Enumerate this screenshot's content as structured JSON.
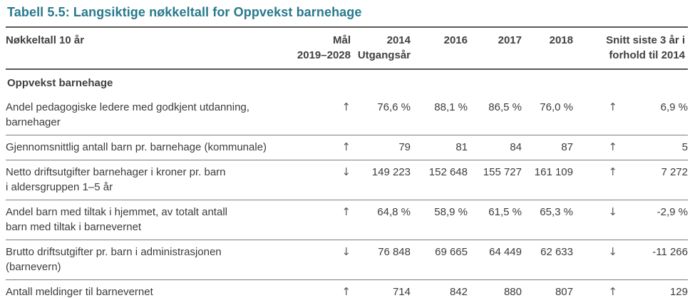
{
  "title": "Tabell 5.5: Langsiktige nøkkeltall for Oppvekst barnehage",
  "colors": {
    "title_accent": "#28798C",
    "rule_dark": "#595959",
    "rule_light": "#7d7d7d",
    "text": "#3c3c3c"
  },
  "table": {
    "header": {
      "col_label": "Nøkkeltall 10 år",
      "col_goal": "Mål\n2019–2028",
      "col_2014": "2014\nUtgangsår",
      "col_2016": "2016",
      "col_2017": "2017",
      "col_2018": "2018",
      "col_snitt": "Snitt siste 3 år i\nforhold til 2014"
    },
    "section_title": "Oppvekst barnehage",
    "rows": [
      {
        "label": "Andel pedagogiske ledere med godkjent utdanning,\nbarnehager",
        "goal_arrow": "↑",
        "v2014": "76,6 %",
        "v2016": "88,1 %",
        "v2017": "86,5 %",
        "v2018": "76,0 %",
        "trend_arrow": "↑",
        "diff": "6,9 %"
      },
      {
        "label": "Gjennomsnittlig antall barn pr. barnehage (kommunale)",
        "goal_arrow": "↑",
        "v2014": "79",
        "v2016": "81",
        "v2017": "84",
        "v2018": "87",
        "trend_arrow": "↑",
        "diff": "5"
      },
      {
        "label": "Netto driftsutgifter barnehager i kroner pr. barn\ni aldersgruppen 1–5 år",
        "goal_arrow": "↓",
        "v2014": "149 223",
        "v2016": "152 648",
        "v2017": "155 727",
        "v2018": "161 109",
        "trend_arrow": "↑",
        "diff": "7 272"
      },
      {
        "label": "Andel barn med tiltak i hjemmet, av totalt antall\nbarn med tiltak i barnevernet",
        "goal_arrow": "↑",
        "v2014": "64,8 %",
        "v2016": "58,9 %",
        "v2017": "61,5 %",
        "v2018": "65,3 %",
        "trend_arrow": "↓",
        "diff": "-2,9 %"
      },
      {
        "label": "Brutto driftsutgifter pr. barn i administrasjonen\n(barnevern)",
        "goal_arrow": "↓",
        "v2014": "76 848",
        "v2016": "69 665",
        "v2017": "64 449",
        "v2018": "62 633",
        "trend_arrow": "↓",
        "diff": "-11 266"
      },
      {
        "label": "Antall meldinger til barnevernet",
        "goal_arrow": "↑",
        "v2014": "714",
        "v2016": "842",
        "v2017": "880",
        "v2018": "807",
        "trend_arrow": "↑",
        "diff": "129"
      }
    ]
  }
}
